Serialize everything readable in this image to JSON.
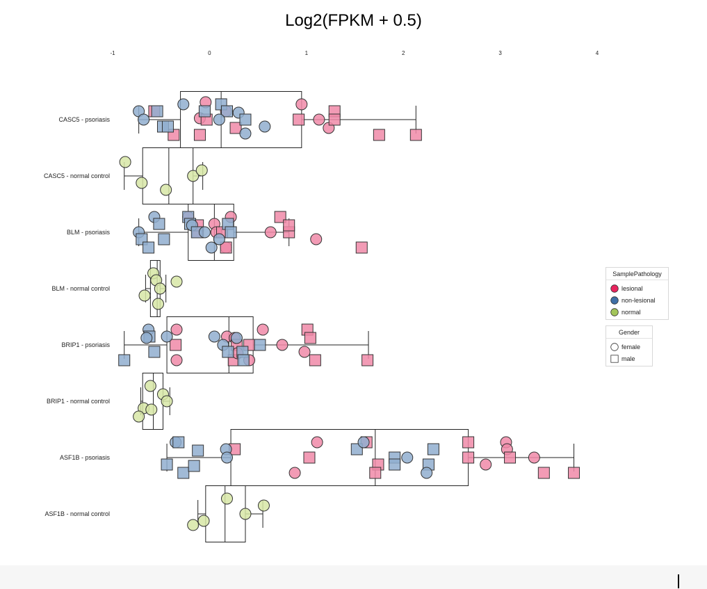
{
  "title": "Log2(FPKM + 0.5)",
  "chart_data": {
    "type": "boxplot-jitter",
    "orientation": "horizontal",
    "xlim": [
      -1,
      4
    ],
    "xticks": [
      "-1",
      "0",
      "1",
      "2",
      "3",
      "4"
    ],
    "categories": [
      "CASC5 - psoriasis",
      "CASC5 - normal control",
      "BLM - psoriasis",
      "BLM - normal control",
      "BRIP1 - psoriasis",
      "BRIP1 - normal control",
      "ASF1B - psoriasis",
      "ASF1B - normal control"
    ],
    "boxes": [
      {
        "min": -0.73,
        "q1": -0.3,
        "median": 0.12,
        "q3": 0.95,
        "max": 2.13
      },
      {
        "min": -0.88,
        "q1": -0.69,
        "median": -0.42,
        "q3": -0.17,
        "max": -0.07
      },
      {
        "min": -0.73,
        "q1": -0.22,
        "median": 0.05,
        "q3": 0.25,
        "max": 0.82
      },
      {
        "min": -0.66,
        "q1": -0.61,
        "median": -0.54,
        "q3": -0.51,
        "max": -0.45
      },
      {
        "min": -0.88,
        "q1": -0.44,
        "median": 0.2,
        "q3": 0.45,
        "max": 1.64
      },
      {
        "min": -0.71,
        "q1": -0.69,
        "median": -0.58,
        "q3": -0.48,
        "max": -0.41
      },
      {
        "min": -0.44,
        "q1": 0.22,
        "median": 1.71,
        "q3": 2.67,
        "max": 3.76
      },
      {
        "min": -0.12,
        "q1": -0.04,
        "median": 0.16,
        "q3": 0.37,
        "max": 0.55
      }
    ],
    "pathology_colors": {
      "lesional": "#f08aa8",
      "non-lesional": "#90aecf",
      "normal": "#d7e6a6"
    },
    "points": [
      [
        [
          -0.57,
          "lesional",
          "male",
          -12
        ],
        [
          -0.37,
          "lesional",
          "male",
          22
        ],
        [
          -0.1,
          "lesional",
          "male",
          22
        ],
        [
          -0.1,
          "lesional",
          "female",
          -2
        ],
        [
          -0.03,
          "lesional",
          "male",
          0
        ],
        [
          -0.04,
          "lesional",
          "female",
          -25
        ],
        [
          0.17,
          "lesional",
          "female",
          -12
        ],
        [
          0.27,
          "lesional",
          "male",
          12
        ],
        [
          0.92,
          "lesional",
          "male",
          0
        ],
        [
          0.95,
          "lesional",
          "female",
          -22
        ],
        [
          1.13,
          "lesional",
          "female",
          0
        ],
        [
          1.23,
          "lesional",
          "female",
          12
        ],
        [
          1.29,
          "lesional",
          "male",
          -12
        ],
        [
          1.29,
          "lesional",
          "male",
          0
        ],
        [
          1.75,
          "lesional",
          "male",
          22
        ],
        [
          2.13,
          "lesional",
          "male",
          22
        ],
        [
          -0.73,
          "non-lesional",
          "female",
          -12
        ],
        [
          -0.68,
          "non-lesional",
          "female",
          0
        ],
        [
          -0.54,
          "non-lesional",
          "male",
          -12
        ],
        [
          -0.48,
          "non-lesional",
          "male",
          10
        ],
        [
          -0.43,
          "non-lesional",
          "male",
          10
        ],
        [
          -0.27,
          "non-lesional",
          "female",
          -22
        ],
        [
          -0.05,
          "non-lesional",
          "male",
          -12
        ],
        [
          0.12,
          "non-lesional",
          "male",
          -22
        ],
        [
          0.18,
          "non-lesional",
          "male",
          -12
        ],
        [
          0.1,
          "non-lesional",
          "female",
          0
        ],
        [
          0.3,
          "non-lesional",
          "female",
          -10
        ],
        [
          0.37,
          "non-lesional",
          "male",
          0
        ],
        [
          0.37,
          "non-lesional",
          "female",
          20
        ],
        [
          0.57,
          "non-lesional",
          "female",
          10
        ]
      ],
      [
        [
          -0.87,
          "normal",
          "female",
          -20
        ],
        [
          -0.7,
          "normal",
          "female",
          10
        ],
        [
          -0.45,
          "normal",
          "female",
          20
        ],
        [
          -0.17,
          "normal",
          "female",
          0
        ],
        [
          -0.08,
          "normal",
          "female",
          -8
        ]
      ],
      [
        [
          -0.22,
          "lesional",
          "female",
          -22
        ],
        [
          -0.12,
          "lesional",
          "male",
          0
        ],
        [
          -0.12,
          "lesional",
          "male",
          -10
        ],
        [
          0.05,
          "lesional",
          "female",
          -12
        ],
        [
          0.07,
          "lesional",
          "female",
          0
        ],
        [
          0.13,
          "lesional",
          "male",
          0
        ],
        [
          0.17,
          "lesional",
          "female",
          22
        ],
        [
          0.17,
          "lesional",
          "male",
          22
        ],
        [
          0.22,
          "lesional",
          "female",
          -22
        ],
        [
          0.63,
          "lesional",
          "female",
          0
        ],
        [
          0.73,
          "lesional",
          "male",
          -22
        ],
        [
          0.82,
          "lesional",
          "male",
          0
        ],
        [
          0.82,
          "lesional",
          "male",
          -10
        ],
        [
          1.1,
          "lesional",
          "female",
          10
        ],
        [
          1.57,
          "lesional",
          "male",
          22
        ],
        [
          -0.57,
          "non-lesional",
          "female",
          -22
        ],
        [
          -0.52,
          "non-lesional",
          "male",
          -12
        ],
        [
          -0.73,
          "non-lesional",
          "female",
          0
        ],
        [
          -0.7,
          "non-lesional",
          "male",
          10
        ],
        [
          -0.63,
          "non-lesional",
          "male",
          22
        ],
        [
          -0.47,
          "non-lesional",
          "male",
          10
        ],
        [
          -0.22,
          "non-lesional",
          "male",
          -22
        ],
        [
          -0.2,
          "non-lesional",
          "male",
          -12
        ],
        [
          -0.18,
          "non-lesional",
          "female",
          -10
        ],
        [
          -0.13,
          "non-lesional",
          "male",
          0
        ],
        [
          -0.05,
          "non-lesional",
          "female",
          0
        ],
        [
          0.02,
          "non-lesional",
          "female",
          22
        ],
        [
          0.1,
          "non-lesional",
          "female",
          10
        ],
        [
          0.19,
          "non-lesional",
          "male",
          -12
        ],
        [
          0.22,
          "non-lesional",
          "male",
          0
        ]
      ],
      [
        [
          -0.58,
          "normal",
          "female",
          -22
        ],
        [
          -0.55,
          "normal",
          "female",
          -12
        ],
        [
          -0.34,
          "normal",
          "female",
          -10
        ],
        [
          -0.51,
          "normal",
          "female",
          0
        ],
        [
          -0.67,
          "normal",
          "female",
          10
        ],
        [
          -0.53,
          "normal",
          "female",
          22
        ]
      ],
      [
        [
          -0.34,
          "lesional",
          "female",
          -22
        ],
        [
          -0.34,
          "lesional",
          "female",
          22
        ],
        [
          -0.35,
          "lesional",
          "male",
          0
        ],
        [
          0.18,
          "lesional",
          "female",
          -12
        ],
        [
          0.25,
          "lesional",
          "male",
          22
        ],
        [
          0.26,
          "lesional",
          "female",
          -10
        ],
        [
          0.28,
          "lesional",
          "male",
          0
        ],
        [
          0.29,
          "lesional",
          "female",
          12
        ],
        [
          0.41,
          "lesional",
          "male",
          0
        ],
        [
          0.41,
          "lesional",
          "female",
          22
        ],
        [
          0.55,
          "lesional",
          "female",
          -22
        ],
        [
          0.75,
          "lesional",
          "female",
          0
        ],
        [
          0.98,
          "lesional",
          "female",
          10
        ],
        [
          1.01,
          "lesional",
          "male",
          -22
        ],
        [
          1.04,
          "lesional",
          "male",
          -10
        ],
        [
          1.09,
          "lesional",
          "male",
          22
        ],
        [
          1.63,
          "lesional",
          "male",
          22
        ],
        [
          -0.63,
          "non-lesional",
          "female",
          -22
        ],
        [
          -0.62,
          "non-lesional",
          "male",
          -12
        ],
        [
          -0.65,
          "non-lesional",
          "female",
          -10
        ],
        [
          -0.57,
          "non-lesional",
          "male",
          10
        ],
        [
          -0.44,
          "non-lesional",
          "female",
          -12
        ],
        [
          -0.88,
          "non-lesional",
          "male",
          22
        ],
        [
          0.05,
          "non-lesional",
          "female",
          -12
        ],
        [
          0.14,
          "non-lesional",
          "female",
          0
        ],
        [
          0.19,
          "non-lesional",
          "male",
          10
        ],
        [
          0.34,
          "non-lesional",
          "male",
          10
        ],
        [
          0.35,
          "non-lesional",
          "male",
          22
        ],
        [
          0.52,
          "non-lesional",
          "male",
          0
        ],
        [
          0.28,
          "non-lesional",
          "female",
          -10
        ]
      ],
      [
        [
          -0.61,
          "normal",
          "female",
          -22
        ],
        [
          -0.48,
          "normal",
          "female",
          -10
        ],
        [
          -0.44,
          "normal",
          "female",
          0
        ],
        [
          -0.68,
          "normal",
          "female",
          10
        ],
        [
          -0.73,
          "normal",
          "female",
          22
        ],
        [
          -0.6,
          "normal",
          "female",
          12
        ]
      ],
      [
        [
          0.26,
          "lesional",
          "male",
          -12
        ],
        [
          1.11,
          "lesional",
          "female",
          -22
        ],
        [
          1.03,
          "lesional",
          "male",
          0
        ],
        [
          0.88,
          "lesional",
          "female",
          22
        ],
        [
          1.62,
          "lesional",
          "male",
          -22
        ],
        [
          1.74,
          "lesional",
          "male",
          10
        ],
        [
          1.71,
          "lesional",
          "male",
          22
        ],
        [
          2.67,
          "lesional",
          "male",
          -22
        ],
        [
          2.67,
          "lesional",
          "male",
          0
        ],
        [
          2.85,
          "lesional",
          "female",
          10
        ],
        [
          3.06,
          "lesional",
          "female",
          -22
        ],
        [
          3.07,
          "lesional",
          "female",
          -12
        ],
        [
          3.1,
          "lesional",
          "male",
          0
        ],
        [
          3.35,
          "lesional",
          "female",
          0
        ],
        [
          3.45,
          "lesional",
          "male",
          22
        ],
        [
          3.76,
          "lesional",
          "male",
          22
        ],
        [
          -0.35,
          "non-lesional",
          "female",
          -22
        ],
        [
          -0.32,
          "non-lesional",
          "male",
          -22
        ],
        [
          -0.12,
          "non-lesional",
          "male",
          -10
        ],
        [
          -0.44,
          "non-lesional",
          "male",
          10
        ],
        [
          -0.27,
          "non-lesional",
          "male",
          22
        ],
        [
          -0.16,
          "non-lesional",
          "male",
          12
        ],
        [
          0.17,
          "non-lesional",
          "female",
          -12
        ],
        [
          0.18,
          "non-lesional",
          "female",
          0
        ],
        [
          1.52,
          "non-lesional",
          "male",
          -12
        ],
        [
          1.59,
          "non-lesional",
          "female",
          -22
        ],
        [
          1.91,
          "non-lesional",
          "male",
          0
        ],
        [
          1.91,
          "non-lesional",
          "male",
          10
        ],
        [
          2.04,
          "non-lesional",
          "female",
          0
        ],
        [
          2.31,
          "non-lesional",
          "male",
          -12
        ],
        [
          2.26,
          "non-lesional",
          "male",
          10
        ],
        [
          2.24,
          "non-lesional",
          "female",
          22
        ]
      ],
      [
        [
          0.18,
          "normal",
          "female",
          -22
        ],
        [
          0.56,
          "normal",
          "female",
          -12
        ],
        [
          0.37,
          "normal",
          "female",
          0
        ],
        [
          -0.06,
          "normal",
          "female",
          10
        ],
        [
          -0.17,
          "normal",
          "female",
          16
        ]
      ]
    ],
    "legends": [
      {
        "title": "SamplePathology",
        "items": [
          {
            "label": "lesional",
            "shape": "circle",
            "color": "#e8245e"
          },
          {
            "label": "non-lesional",
            "shape": "circle",
            "color": "#3f6fa6"
          },
          {
            "label": "normal",
            "shape": "circle",
            "color": "#a3c55a"
          }
        ]
      },
      {
        "title": "Gender",
        "items": [
          {
            "label": "female",
            "shape": "circle",
            "color": "#ffffff"
          },
          {
            "label": "male",
            "shape": "square",
            "color": "#ffffff"
          }
        ]
      }
    ]
  }
}
